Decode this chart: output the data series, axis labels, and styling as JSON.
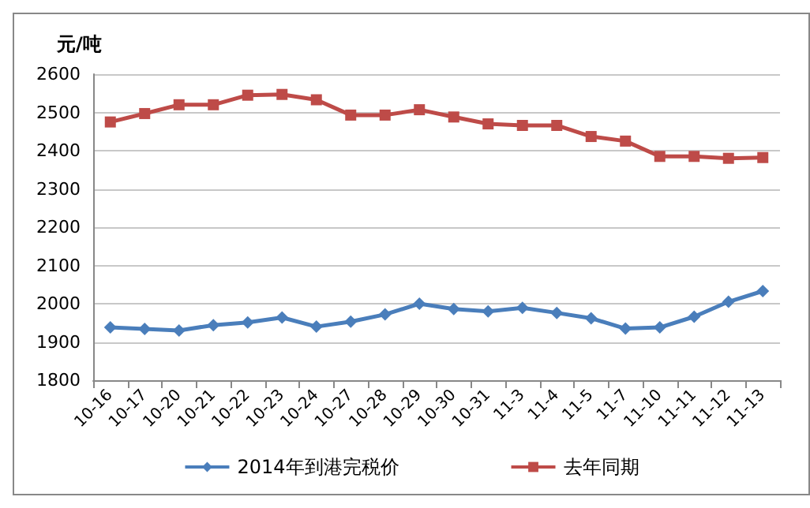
{
  "chart_data": {
    "type": "line",
    "ylabel": "元/吨",
    "categories": [
      "10-16",
      "10-17",
      "10-20",
      "10-21",
      "10-22",
      "10-23",
      "10-24",
      "10-27",
      "10-28",
      "10-29",
      "10-30",
      "10-31",
      "11-3",
      "11-4",
      "11-5",
      "11-7",
      "11-10",
      "11-11",
      "11-12",
      "11-13"
    ],
    "series": [
      {
        "name": "2014年到港完税价",
        "color": "#4a7ebb",
        "marker": "diamond",
        "values": [
          1938,
          1934,
          1930,
          1944,
          1951,
          1964,
          1940,
          1953,
          1972,
          2000,
          1986,
          1980,
          1989,
          1976,
          1962,
          1935,
          1938,
          1966,
          2005,
          2033
        ]
      },
      {
        "name": "去年同期",
        "color": "#be4b48",
        "marker": "square",
        "values": [
          2475,
          2497,
          2520,
          2520,
          2545,
          2547,
          2533,
          2493,
          2493,
          2507,
          2488,
          2470,
          2466,
          2466,
          2437,
          2425,
          2385,
          2385,
          2380,
          2382
        ]
      }
    ],
    "ylim": [
      1800,
      2600
    ],
    "yticks": [
      1800,
      1900,
      2000,
      2100,
      2200,
      2300,
      2400,
      2500,
      2600
    ],
    "grid": "y",
    "legend": "bottom",
    "line_style": "solid"
  }
}
